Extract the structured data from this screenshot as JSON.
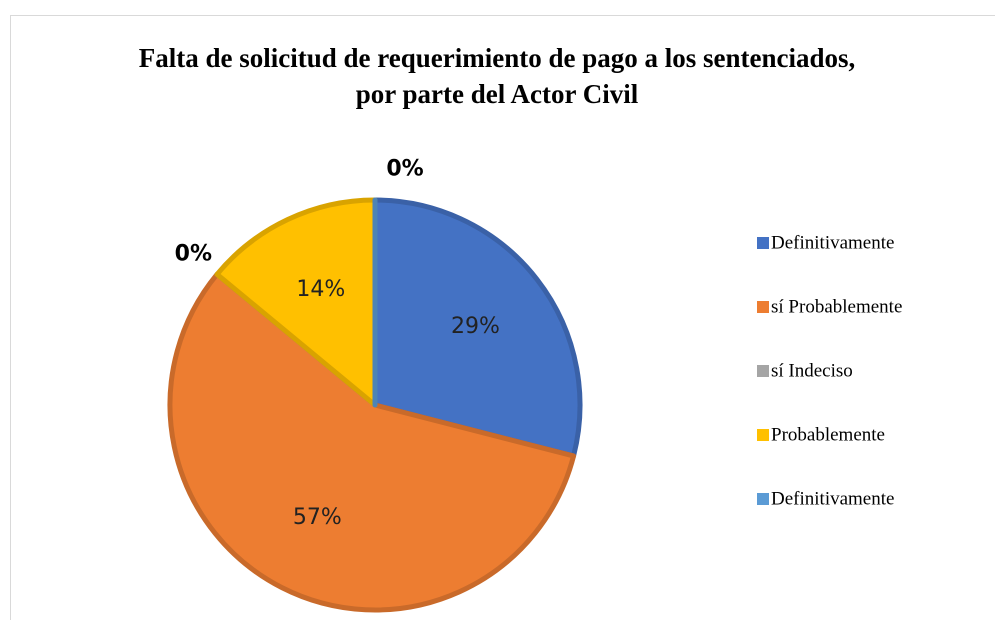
{
  "chart_data": {
    "type": "pie",
    "title": "Falta de solicitud de requerimiento de pago a los sentenciados, por parte del Actor Civil",
    "categories": [
      "Definitivamente",
      "sí Probablemente",
      "sí Indeciso",
      "Probablemente",
      "Definitivamente"
    ],
    "values": [
      29,
      57,
      0,
      14,
      0
    ],
    "value_labels": [
      "29%",
      "57%",
      "0%",
      "14%",
      "0%"
    ],
    "colors": [
      "#4472c4",
      "#ed7d31",
      "#a5a5a5",
      "#ffc000",
      "#5b9bd5"
    ],
    "legend": "right"
  }
}
